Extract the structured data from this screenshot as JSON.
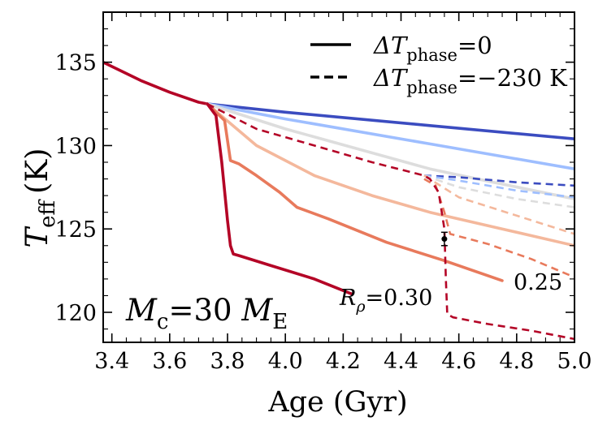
{
  "chart_data": {
    "type": "line",
    "xlabel": "Age (Gyr)",
    "ylabel": {
      "main": "T",
      "sub": "eff",
      "unit": "(K)"
    },
    "xlim": [
      3.37,
      5.0
    ],
    "ylim": [
      118.2,
      138.0
    ],
    "xticks": [
      "3.4",
      "3.6",
      "3.8",
      "4.0",
      "4.2",
      "4.4",
      "4.6",
      "4.8",
      "5.0"
    ],
    "yticks": [
      "120",
      "125",
      "130",
      "135"
    ],
    "legend": {
      "position": "top-right",
      "solid": {
        "main": "ΔT",
        "sub": "phase",
        "rest": "=0"
      },
      "dashed": {
        "main": "ΔT",
        "sub": "phase",
        "rest": "=−230 K"
      }
    },
    "annotations": {
      "mass": {
        "main": "M",
        "sub": "c",
        "mid": "=30 ",
        "main2": "M",
        "sub2": "E"
      },
      "rho": {
        "main": "R",
        "sub": "ρ",
        "rest": "=0.30"
      },
      "rho25": "0.25"
    },
    "observation": {
      "x": 4.55,
      "y": 124.4,
      "yerr": 0.4
    },
    "colors": {
      "blue_dark": "#3b4cc0",
      "blue_light": "#9ebeff",
      "blue_pale": "#bcd2f5",
      "gray": "#dddddd",
      "salmon_pale": "#f4b89c",
      "salmon": "#e87a5c",
      "red": "#b40426",
      "frame": "#000000"
    },
    "series": [
      {
        "name": "shared-track",
        "style": "solid",
        "color": "#b40426",
        "x": [
          3.37,
          3.5,
          3.6,
          3.7,
          3.73
        ],
        "y": [
          135.0,
          133.9,
          133.2,
          132.6,
          132.5
        ]
      },
      {
        "name": "solid-blue-dark",
        "style": "solid",
        "color": "#3b4cc0",
        "x": [
          3.73,
          4.0,
          4.5,
          5.0
        ],
        "y": [
          132.5,
          132.0,
          131.2,
          130.4
        ]
      },
      {
        "name": "solid-blue-light",
        "style": "solid",
        "color": "#9ebeff",
        "x": [
          3.73,
          4.0,
          4.5,
          5.0
        ],
        "y": [
          132.5,
          131.6,
          130.1,
          128.6
        ]
      },
      {
        "name": "solid-gray",
        "style": "solid",
        "color": "#dddddd",
        "x": [
          3.73,
          4.0,
          4.5,
          4.72,
          5.0
        ],
        "y": [
          132.5,
          131.0,
          128.6,
          127.8,
          126.8
        ]
      },
      {
        "name": "solid-salmon-pale",
        "style": "solid",
        "color": "#f4b89c",
        "x": [
          3.73,
          3.9,
          4.1,
          4.3,
          4.5,
          4.75,
          5.0
        ],
        "y": [
          132.5,
          130.0,
          128.2,
          127.0,
          126.0,
          125.0,
          124.0
        ]
      },
      {
        "name": "solid-salmon",
        "style": "solid",
        "color": "#e87a5c",
        "x": [
          3.73,
          3.79,
          3.81,
          3.84,
          3.9,
          3.98,
          4.04,
          4.15,
          4.35,
          4.55,
          4.75
        ],
        "y": [
          132.5,
          131.5,
          129.1,
          128.9,
          128.2,
          127.2,
          126.3,
          125.6,
          124.2,
          123.1,
          121.9
        ]
      },
      {
        "name": "solid-red",
        "style": "solid",
        "color": "#b40426",
        "x": [
          3.73,
          3.76,
          3.78,
          3.8,
          3.81,
          3.82,
          3.84,
          3.95,
          4.1,
          4.23
        ],
        "y": [
          132.5,
          131.8,
          129.0,
          125.5,
          124.0,
          123.5,
          123.4,
          122.8,
          122.0,
          121.1
        ]
      },
      {
        "name": "dashed-blue-dark",
        "style": "dashed",
        "color": "#3b4cc0",
        "x": [
          4.48,
          4.6,
          4.8,
          5.0
        ],
        "y": [
          128.2,
          128.1,
          127.8,
          127.6
        ]
      },
      {
        "name": "dashed-blue-light",
        "style": "dashed",
        "color": "#9ebeff",
        "x": [
          4.48,
          4.6,
          4.8,
          5.0
        ],
        "y": [
          128.2,
          127.9,
          127.3,
          126.9
        ]
      },
      {
        "name": "dashed-gray",
        "style": "dashed",
        "color": "#dddddd",
        "x": [
          4.48,
          4.6,
          4.8,
          5.0
        ],
        "y": [
          128.2,
          127.5,
          126.8,
          126.3
        ]
      },
      {
        "name": "dashed-salmon-pale",
        "style": "dashed",
        "color": "#f4b89c",
        "x": [
          4.48,
          4.6,
          4.8,
          5.0
        ],
        "y": [
          128.2,
          126.9,
          125.8,
          124.7
        ]
      },
      {
        "name": "dashed-salmon",
        "style": "dashed",
        "color": "#e87a5c",
        "x": [
          4.48,
          4.52,
          4.55,
          4.57,
          4.7,
          4.85,
          5.0
        ],
        "y": [
          128.0,
          127.6,
          126.0,
          124.7,
          124.1,
          123.2,
          122.1
        ]
      },
      {
        "name": "dashed-red",
        "style": "dashed",
        "color": "#b40426",
        "x": [
          3.73,
          3.9,
          4.1,
          4.3,
          4.48,
          4.5,
          4.53,
          4.55,
          4.555,
          4.56,
          4.58,
          4.7,
          4.85,
          5.0
        ],
        "y": [
          132.5,
          131.0,
          130.0,
          129.0,
          128.2,
          128.0,
          127.2,
          125.0,
          122.0,
          119.9,
          119.7,
          119.3,
          118.9,
          118.4
        ]
      }
    ]
  }
}
